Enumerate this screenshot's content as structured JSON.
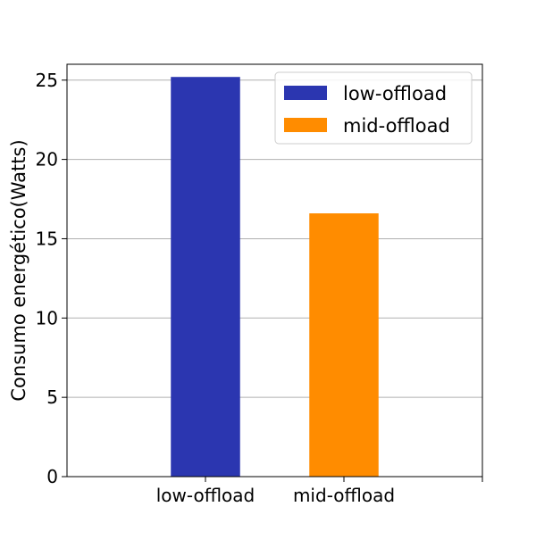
{
  "chart_data": {
    "type": "bar",
    "title": "",
    "xlabel": "",
    "ylabel": "Consumo energético(Watts)",
    "categories": [
      "low-offload",
      "mid-offload"
    ],
    "values": [
      25.2,
      16.6
    ],
    "colors": [
      "#2b36b0",
      "#ff8c00"
    ],
    "ylim": [
      0,
      26
    ],
    "yticks": [
      0,
      5,
      10,
      15,
      20,
      25
    ],
    "grid": {
      "y": true,
      "x": false
    },
    "legend": {
      "placement": "top-right",
      "entries": [
        {
          "label": "low-offload",
          "color": "#2b36b0"
        },
        {
          "label": "mid-offload",
          "color": "#ff8c00"
        }
      ]
    }
  }
}
